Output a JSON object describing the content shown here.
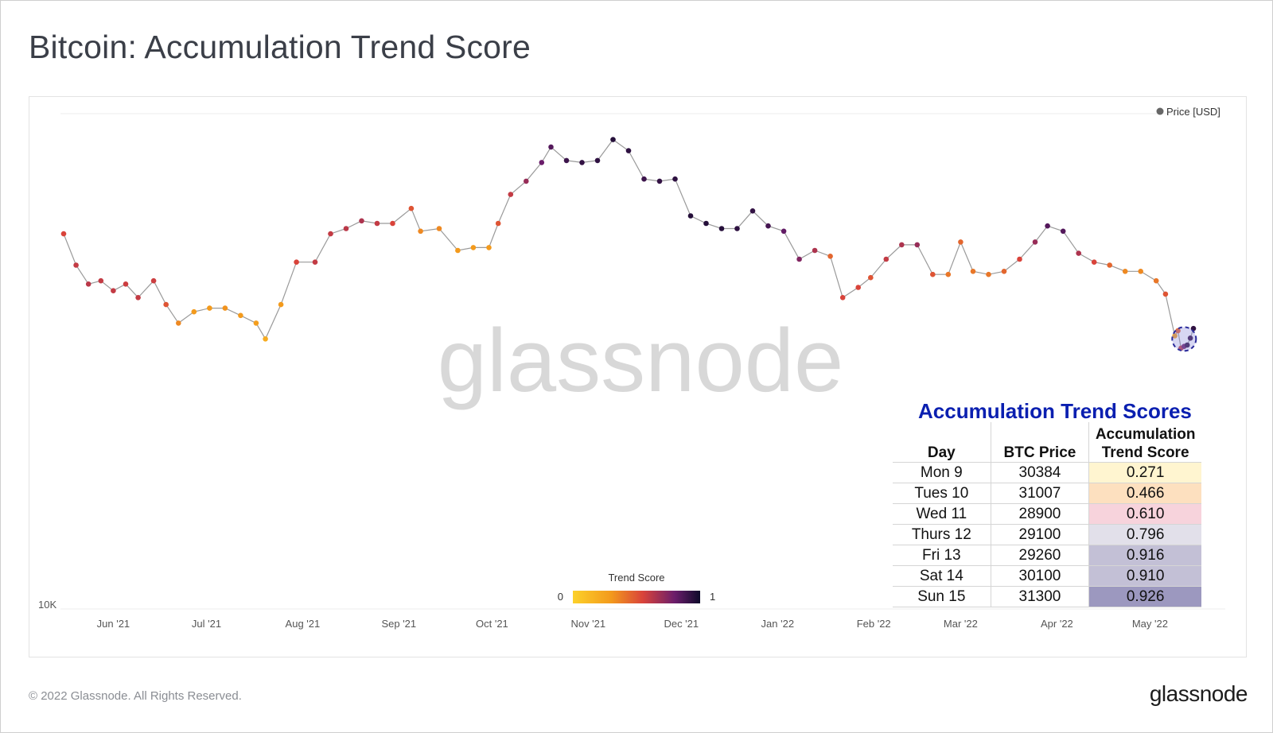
{
  "title": "Bitcoin: Accumulation Trend Score",
  "footer": {
    "copyright": "© 2022 Glassnode. All Rights Reserved.",
    "logo": "glassnode"
  },
  "watermark": "glassnode",
  "colors": {
    "trend_low": "#f9d423",
    "trend_mid": "#e35a2f",
    "trend_high": "#1a0a3a",
    "line": "#9a9a9a",
    "table_title": "#0a1fb0"
  },
  "chart_data": {
    "type": "scatter",
    "title": "Bitcoin: Accumulation Trend Score",
    "legend": {
      "label": "Price [USD]",
      "placement": "top-right"
    },
    "colorbar": {
      "label": "Trend Score",
      "min_label": "0",
      "max_label": "1"
    },
    "y_tick_labels": [
      "10K"
    ],
    "x_tick_labels": [
      "Jun '21",
      "Jul '21",
      "Aug '21",
      "Sep '21",
      "Oct '21",
      "Nov '21",
      "Dec '21",
      "Jan '22",
      "Feb '22",
      "Mar '22",
      "Apr '22",
      "May '22"
    ],
    "x_ticks": [
      "2021-06-01",
      "2021-07-01",
      "2021-08-01",
      "2021-09-01",
      "2021-10-01",
      "2021-11-01",
      "2021-12-01",
      "2022-01-01",
      "2022-02-01",
      "2022-03-01",
      "2022-04-01",
      "2022-05-01"
    ],
    "x_range": [
      "2021-05-16",
      "2022-05-15"
    ],
    "y_range": [
      10000,
      75000
    ],
    "y_scale": "log",
    "grid": false,
    "series": [
      {
        "name": "Price [USD]",
        "points": [
          [
            "2021-05-16",
            46000,
            0.55
          ],
          [
            "2021-05-20",
            40500,
            0.6
          ],
          [
            "2021-05-24",
            37500,
            0.62
          ],
          [
            "2021-05-28",
            38000,
            0.6
          ],
          [
            "2021-06-01",
            36500,
            0.6
          ],
          [
            "2021-06-05",
            37500,
            0.58
          ],
          [
            "2021-06-09",
            35500,
            0.6
          ],
          [
            "2021-06-14",
            38000,
            0.58
          ],
          [
            "2021-06-18",
            34500,
            0.5
          ],
          [
            "2021-06-22",
            32000,
            0.35
          ],
          [
            "2021-06-27",
            33500,
            0.3
          ],
          [
            "2021-07-02",
            34000,
            0.3
          ],
          [
            "2021-07-07",
            34000,
            0.32
          ],
          [
            "2021-07-12",
            33000,
            0.3
          ],
          [
            "2021-07-17",
            32000,
            0.28
          ],
          [
            "2021-07-20",
            30000,
            0.2
          ],
          [
            "2021-07-25",
            34500,
            0.3
          ],
          [
            "2021-07-30",
            41000,
            0.55
          ],
          [
            "2021-08-05",
            41000,
            0.6
          ],
          [
            "2021-08-10",
            46000,
            0.6
          ],
          [
            "2021-08-15",
            47000,
            0.62
          ],
          [
            "2021-08-20",
            48500,
            0.65
          ],
          [
            "2021-08-25",
            48000,
            0.6
          ],
          [
            "2021-08-30",
            48000,
            0.55
          ],
          [
            "2021-09-05",
            51000,
            0.5
          ],
          [
            "2021-09-08",
            46500,
            0.35
          ],
          [
            "2021-09-14",
            47000,
            0.35
          ],
          [
            "2021-09-20",
            43000,
            0.3
          ],
          [
            "2021-09-25",
            43500,
            0.3
          ],
          [
            "2021-09-30",
            43500,
            0.3
          ],
          [
            "2021-10-03",
            48000,
            0.5
          ],
          [
            "2021-10-07",
            54000,
            0.6
          ],
          [
            "2021-10-12",
            57000,
            0.7
          ],
          [
            "2021-10-17",
            61500,
            0.8
          ],
          [
            "2021-10-20",
            65500,
            0.85
          ],
          [
            "2021-10-25",
            62000,
            0.9
          ],
          [
            "2021-10-30",
            61500,
            0.92
          ],
          [
            "2021-11-04",
            62000,
            0.93
          ],
          [
            "2021-11-09",
            67500,
            0.95
          ],
          [
            "2021-11-14",
            64500,
            0.93
          ],
          [
            "2021-11-19",
            57500,
            0.9
          ],
          [
            "2021-11-24",
            57000,
            0.92
          ],
          [
            "2021-11-29",
            57500,
            0.93
          ],
          [
            "2021-12-04",
            49500,
            0.95
          ],
          [
            "2021-12-09",
            48000,
            0.95
          ],
          [
            "2021-12-14",
            47000,
            0.95
          ],
          [
            "2021-12-19",
            47000,
            0.93
          ],
          [
            "2021-12-24",
            50500,
            0.92
          ],
          [
            "2021-12-29",
            47500,
            0.88
          ],
          [
            "2022-01-03",
            46500,
            0.82
          ],
          [
            "2022-01-08",
            41500,
            0.75
          ],
          [
            "2022-01-13",
            43000,
            0.65
          ],
          [
            "2022-01-18",
            42000,
            0.45
          ],
          [
            "2022-01-22",
            35500,
            0.55
          ],
          [
            "2022-01-27",
            37000,
            0.55
          ],
          [
            "2022-01-31",
            38500,
            0.5
          ],
          [
            "2022-02-05",
            41500,
            0.6
          ],
          [
            "2022-02-10",
            44000,
            0.65
          ],
          [
            "2022-02-15",
            44000,
            0.7
          ],
          [
            "2022-02-20",
            39000,
            0.5
          ],
          [
            "2022-02-25",
            39000,
            0.4
          ],
          [
            "2022-03-01",
            44500,
            0.45
          ],
          [
            "2022-03-05",
            39500,
            0.4
          ],
          [
            "2022-03-10",
            39000,
            0.4
          ],
          [
            "2022-03-15",
            39500,
            0.45
          ],
          [
            "2022-03-20",
            41500,
            0.55
          ],
          [
            "2022-03-25",
            44500,
            0.7
          ],
          [
            "2022-03-29",
            47500,
            0.85
          ],
          [
            "2022-04-03",
            46500,
            0.85
          ],
          [
            "2022-04-08",
            42500,
            0.65
          ],
          [
            "2022-04-13",
            41000,
            0.55
          ],
          [
            "2022-04-18",
            40500,
            0.45
          ],
          [
            "2022-04-23",
            39500,
            0.35
          ],
          [
            "2022-04-28",
            39500,
            0.35
          ],
          [
            "2022-05-03",
            38000,
            0.4
          ],
          [
            "2022-05-06",
            36000,
            0.5
          ],
          [
            "2022-05-09",
            30384,
            0.271
          ],
          [
            "2022-05-10",
            31007,
            0.466
          ],
          [
            "2022-05-11",
            28900,
            0.61
          ],
          [
            "2022-05-12",
            29100,
            0.796
          ],
          [
            "2022-05-13",
            29260,
            0.916
          ],
          [
            "2022-05-14",
            30100,
            0.91
          ],
          [
            "2022-05-15",
            31300,
            0.926
          ]
        ]
      }
    ]
  },
  "scores_table": {
    "title": "Accumulation Trend Scores",
    "headers": {
      "day": "Day",
      "price": "BTC Price",
      "score_line1": "Accumulation",
      "score_line2": "Trend Score"
    },
    "rows": [
      {
        "day": "Mon 9",
        "price": "30384",
        "score": "0.271",
        "color": "#fff5d0"
      },
      {
        "day": "Tues 10",
        "price": "31007",
        "score": "0.466",
        "color": "#fde0bf"
      },
      {
        "day": "Wed 11",
        "price": "28900",
        "score": "0.610",
        "color": "#f7d3dc"
      },
      {
        "day": "Thurs 12",
        "price": "29100",
        "score": "0.796",
        "color": "#e2e0ea"
      },
      {
        "day": "Fri 13",
        "price": "29260",
        "score": "0.916",
        "color": "#c3c0d6"
      },
      {
        "day": "Sat 14",
        "price": "30100",
        "score": "0.910",
        "color": "#c3c0d6"
      },
      {
        "day": "Sun 15",
        "price": "31300",
        "score": "0.926",
        "color": "#9c98bf"
      }
    ]
  }
}
